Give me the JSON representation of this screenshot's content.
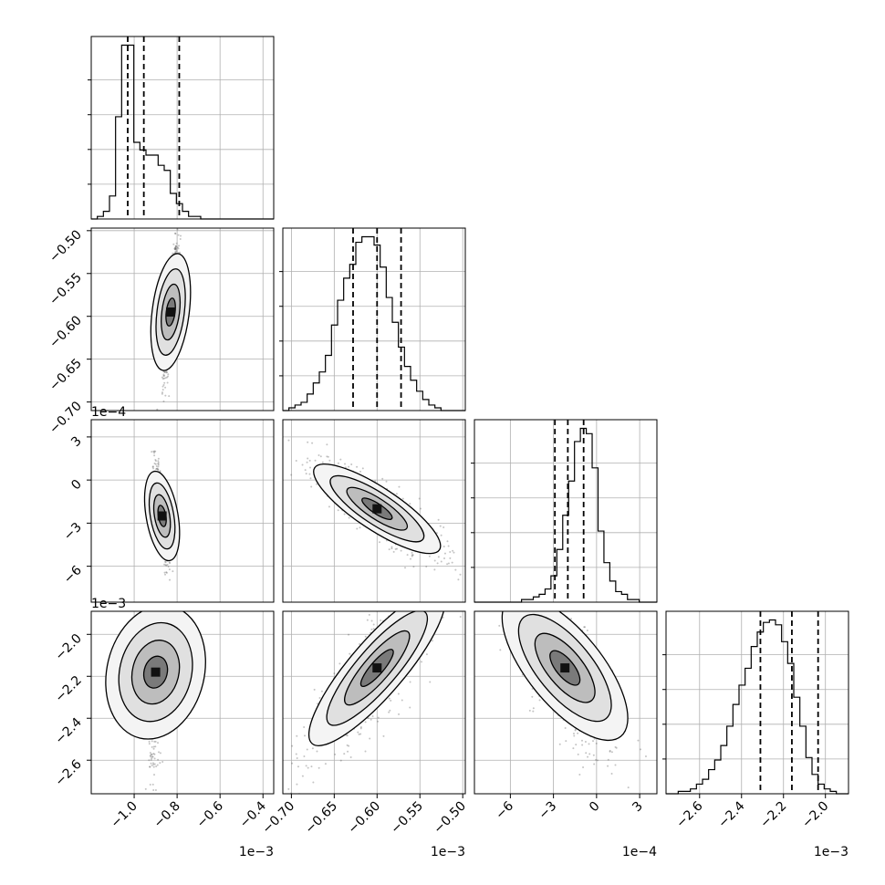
{
  "chart_data": {
    "type": "corner",
    "n_params": 4,
    "grid": true,
    "axis_ranges": [
      [
        -0.0012,
        -0.00035
      ],
      [
        -0.00071,
        -0.000497
      ],
      [
        -0.00085,
        0.00042
      ],
      [
        -0.00276,
        -0.00189
      ]
    ],
    "axis_ticks": [
      {
        "values": [
          -0.001,
          -0.0008,
          -0.0006,
          -0.0004
        ],
        "labels": [
          "−1.0",
          "−0.8",
          "−0.6",
          "−0.4"
        ],
        "offset": "1e−3"
      },
      {
        "values": [
          -0.0007,
          -0.00065,
          -0.0006,
          -0.00055,
          -0.0005
        ],
        "labels": [
          "−0.70",
          "−0.65",
          "−0.60",
          "−0.55",
          "−0.50"
        ],
        "offset": "1e−3"
      },
      {
        "values": [
          -0.0006,
          -0.0003,
          0,
          0.0003
        ],
        "labels": [
          "−6",
          "−3",
          "0",
          "3"
        ],
        "offset": "1e−4"
      },
      {
        "values": [
          -0.0026,
          -0.0024,
          -0.0022,
          -0.002
        ],
        "labels": [
          "−2.6",
          "−2.4",
          "−2.2",
          "−2.0"
        ],
        "offset": "1e−3"
      }
    ],
    "quantiles": [
      [
        -0.00103,
        -0.000955,
        -0.00079
      ],
      [
        -0.000628,
        -0.0006,
        -0.000572
      ],
      [
        -0.00029,
        -0.0002,
        -9e-05
      ],
      [
        -0.00231,
        -0.00216,
        -0.002035
      ]
    ],
    "histograms": [
      {
        "edges": [
          -0.0012,
          -0.00035
        ],
        "counts": [
          0,
          1,
          3,
          9,
          40,
          68,
          68,
          30,
          27,
          25,
          25,
          21,
          19,
          10,
          6,
          3,
          1,
          1,
          0,
          0,
          0,
          0,
          0,
          0,
          0,
          0,
          0,
          0,
          0,
          0
        ]
      },
      {
        "edges": [
          -0.00071,
          -0.000497
        ],
        "counts": [
          0,
          1,
          2,
          3,
          6,
          10,
          14,
          20,
          31,
          40,
          48,
          53,
          61,
          63,
          63,
          60,
          52,
          41,
          32,
          23,
          16,
          11,
          7,
          4,
          2,
          1,
          0,
          0,
          0,
          0
        ]
      },
      {
        "edges": [
          -0.00085,
          0.00042
        ],
        "counts": [
          0,
          0,
          0,
          0,
          0,
          0,
          0,
          0,
          1,
          1,
          2,
          3,
          5,
          10,
          20,
          33,
          46,
          61,
          66,
          64,
          51,
          27,
          15,
          8,
          4,
          3,
          1,
          1,
          0,
          0,
          0
        ]
      },
      {
        "edges": [
          -0.00276,
          -0.00189
        ],
        "counts": [
          0,
          0,
          1,
          1,
          2,
          4,
          6,
          10,
          14,
          20,
          28,
          37,
          45,
          52,
          61,
          67,
          71,
          72,
          70,
          63,
          54,
          40,
          28,
          15,
          8,
          4,
          2,
          1,
          0,
          0
        ]
      }
    ],
    "pairs": [
      {
        "x": 0,
        "y": 1,
        "center": [
          -0.00083,
          -0.000595
        ],
        "sigma": [
          1.35e-05,
          3.25e-05
        ],
        "corr": 0.82
      },
      {
        "x": 0,
        "y": 2,
        "center": [
          -0.00087,
          -0.00025
        ],
        "sigma": [
          1.35e-05,
          0.00015
        ],
        "corr": -0.78
      },
      {
        "x": 0,
        "y": 3,
        "center": [
          -0.0009,
          -0.00218
        ],
        "sigma": [
          1.35e-05,
          0.00018
        ],
        "corr": 0.32
      },
      {
        "x": 1,
        "y": 2,
        "center": [
          -0.0006,
          -0.0002
        ],
        "sigma": [
          3.25e-05,
          0.00015
        ],
        "corr": -0.85
      },
      {
        "x": 1,
        "y": 3,
        "center": [
          -0.0006,
          -0.00216
        ],
        "sigma": [
          3.25e-05,
          0.00018
        ],
        "corr": 0.86
      },
      {
        "x": 2,
        "y": 3,
        "center": [
          -0.00022,
          -0.00216
        ],
        "sigma": [
          0.00015,
          0.00018
        ],
        "corr": -0.7
      }
    ]
  }
}
